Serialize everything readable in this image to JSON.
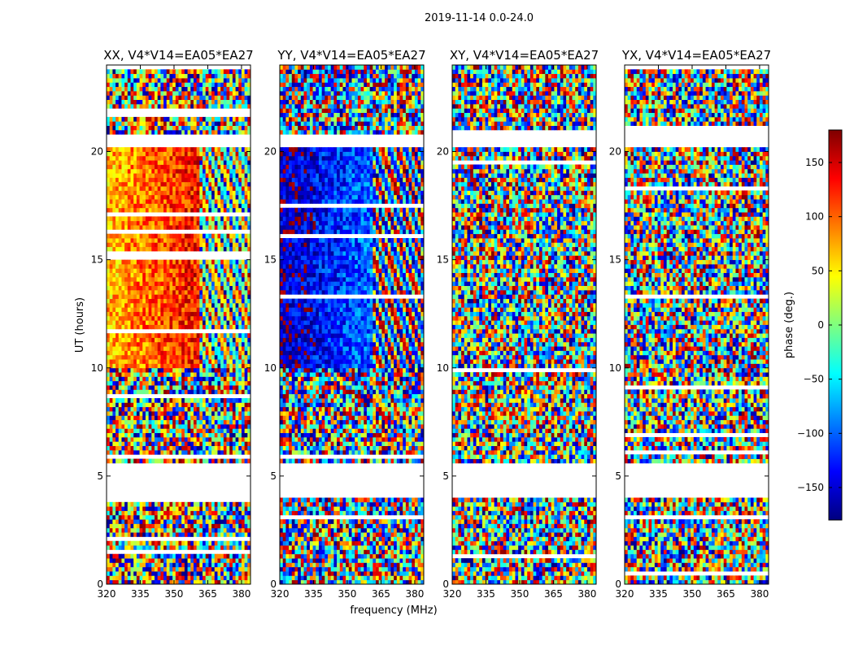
{
  "figure": {
    "suptitle": "2019-11-14 0.0-24.0",
    "xlabel": "frequency (MHz)",
    "ylabel": "UT (hours)"
  },
  "chart_data": {
    "type": "heatmap",
    "title": "2019-11-14 0.0-24.0",
    "xlabel": "frequency (MHz)",
    "ylabel": "UT (hours)",
    "xlim": [
      320,
      384
    ],
    "ylim": [
      0,
      24
    ],
    "xticks": [
      320,
      335,
      350,
      365,
      380
    ],
    "yticks": [
      0,
      5,
      10,
      15,
      20
    ],
    "panels": [
      {
        "title": "XX, V4*V14=EA05*EA27",
        "mean_phase": 100,
        "phase_slope": 160,
        "break_freq": 361,
        "break_phase": -170
      },
      {
        "title": "YY, V4*V14=EA05*EA27",
        "mean_phase": -130,
        "phase_slope": 160,
        "break_freq": 361,
        "break_phase": 20
      },
      {
        "title": "XY, V4*V14=EA05*EA27",
        "mean_phase": 0,
        "phase_slope": 0,
        "break_freq": 384,
        "break_phase": 0
      },
      {
        "title": "YX, V4*V14=EA05*EA27",
        "mean_phase": 0,
        "phase_slope": 0,
        "break_freq": 384,
        "break_phase": 0
      }
    ],
    "blank_time_ranges": [
      [
        4.1,
        5.5
      ],
      [
        20.2,
        20.7
      ]
    ],
    "colorbar": {
      "label": "phase (deg.)",
      "range": [
        -180,
        180
      ],
      "ticks": [
        -150,
        -100,
        -50,
        0,
        50,
        100,
        150
      ],
      "tick_labels": [
        "−150",
        "−100",
        "−50",
        "0",
        "50",
        "100",
        "150"
      ],
      "colormap": [
        "#00007f",
        "#0000ff",
        "#007fff",
        "#00ffff",
        "#7fff7f",
        "#ffff00",
        "#ff7f00",
        "#ff0000",
        "#7f0000"
      ]
    }
  }
}
